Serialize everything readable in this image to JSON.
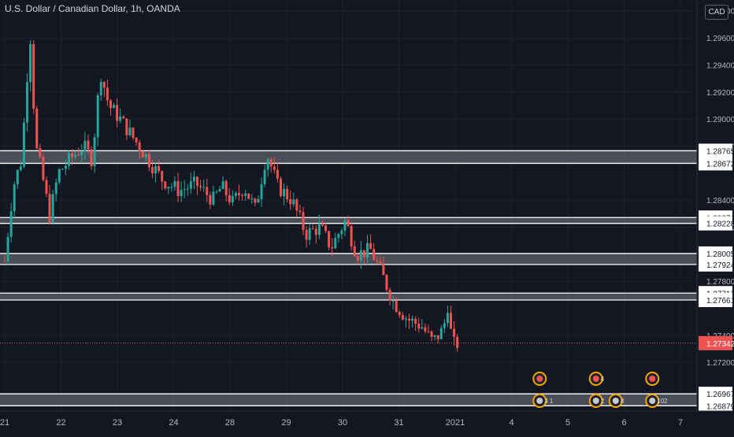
{
  "header": {
    "symbol_title": "U.S. Dollar / Canadian Dollar, 1h, OANDA",
    "currency_button": "CAD"
  },
  "colors": {
    "background": "#131722",
    "up": "#26a69a",
    "down": "#ef5350",
    "zone": "#787b86",
    "price_tag": "#ef5350"
  },
  "chart_data": {
    "type": "candlestick",
    "title": "U.S. Dollar / Canadian Dollar, 1h, OANDA",
    "ylim": [
      1.2684,
      1.2988
    ],
    "y_ticks": [
      "1.29800",
      "1.29600",
      "1.29400",
      "1.29200",
      "1.29000",
      "1.28800",
      "1.28400",
      "1.28200",
      "1.27800",
      "1.27400",
      "1.27200"
    ],
    "x_ticks": [
      "21",
      "22",
      "23",
      "24",
      "28",
      "29",
      "30",
      "31",
      "2021",
      "4",
      "5",
      "6",
      "7"
    ],
    "x_tick_positions_day_index": [
      0,
      1,
      2,
      3,
      4,
      5,
      6,
      7,
      8,
      9,
      10,
      11,
      12
    ],
    "zones": [
      {
        "top": 1.28765,
        "bottom": 1.28672
      },
      {
        "top": 1.28271,
        "bottom": 1.28228
      },
      {
        "top": 1.28005,
        "bottom": 1.27924
      },
      {
        "top": 1.27712,
        "bottom": 1.27661
      },
      {
        "top": 1.26967,
        "bottom": 1.26879
      }
    ],
    "level_labels": [
      "1.28765",
      "1.28672",
      "1.28271",
      "1.28228",
      "1.28005",
      "1.27924",
      "1.27712",
      "1.27661",
      "1.26967",
      "1.26879"
    ],
    "current_price": "1.27342",
    "price_path": [
      [
        0.0,
        1.2795
      ],
      [
        0.15,
        1.285
      ],
      [
        0.3,
        1.287
      ],
      [
        0.45,
        1.2965
      ],
      [
        0.55,
        1.288
      ],
      [
        0.65,
        1.2862
      ],
      [
        0.8,
        1.2828
      ],
      [
        0.95,
        1.286
      ],
      [
        1.2,
        1.2872
      ],
      [
        1.4,
        1.288
      ],
      [
        1.55,
        1.287
      ],
      [
        1.7,
        1.2935
      ],
      [
        1.85,
        1.291
      ],
      [
        2.05,
        1.29
      ],
      [
        2.3,
        1.2885
      ],
      [
        2.55,
        1.287
      ],
      [
        2.8,
        1.2855
      ],
      [
        3.1,
        1.2847
      ],
      [
        3.4,
        1.2852
      ],
      [
        3.7,
        1.284
      ],
      [
        3.85,
        1.285
      ],
      [
        4.05,
        1.2838
      ],
      [
        4.25,
        1.285
      ],
      [
        4.45,
        1.2833
      ],
      [
        4.65,
        1.2875
      ],
      [
        4.85,
        1.285
      ],
      [
        5.1,
        1.284
      ],
      [
        5.35,
        1.2815
      ],
      [
        5.6,
        1.282
      ],
      [
        5.8,
        1.2805
      ],
      [
        6.05,
        1.2825
      ],
      [
        6.25,
        1.28
      ],
      [
        6.5,
        1.2803
      ],
      [
        6.7,
        1.2785
      ],
      [
        6.9,
        1.2765
      ],
      [
        7.15,
        1.2752
      ],
      [
        7.4,
        1.2747
      ],
      [
        7.6,
        1.2735
      ],
      [
        7.8,
        1.2745
      ],
      [
        7.85,
        1.2768
      ],
      [
        7.95,
        1.2733
      ],
      [
        8.05,
        1.2734
      ]
    ],
    "event_markers": [
      {
        "day": 9.5,
        "row": 1,
        "label": ""
      },
      {
        "day": 9.5,
        "row": 2,
        "label": "3 1"
      },
      {
        "day": 10.5,
        "row": 1,
        "label": "4"
      },
      {
        "day": 10.5,
        "row": 2,
        "label": "2"
      },
      {
        "day": 10.85,
        "row": 2,
        "label": "8"
      },
      {
        "day": 11.5,
        "row": 1,
        "label": ""
      },
      {
        "day": 11.5,
        "row": 2,
        "label": "102"
      }
    ]
  }
}
